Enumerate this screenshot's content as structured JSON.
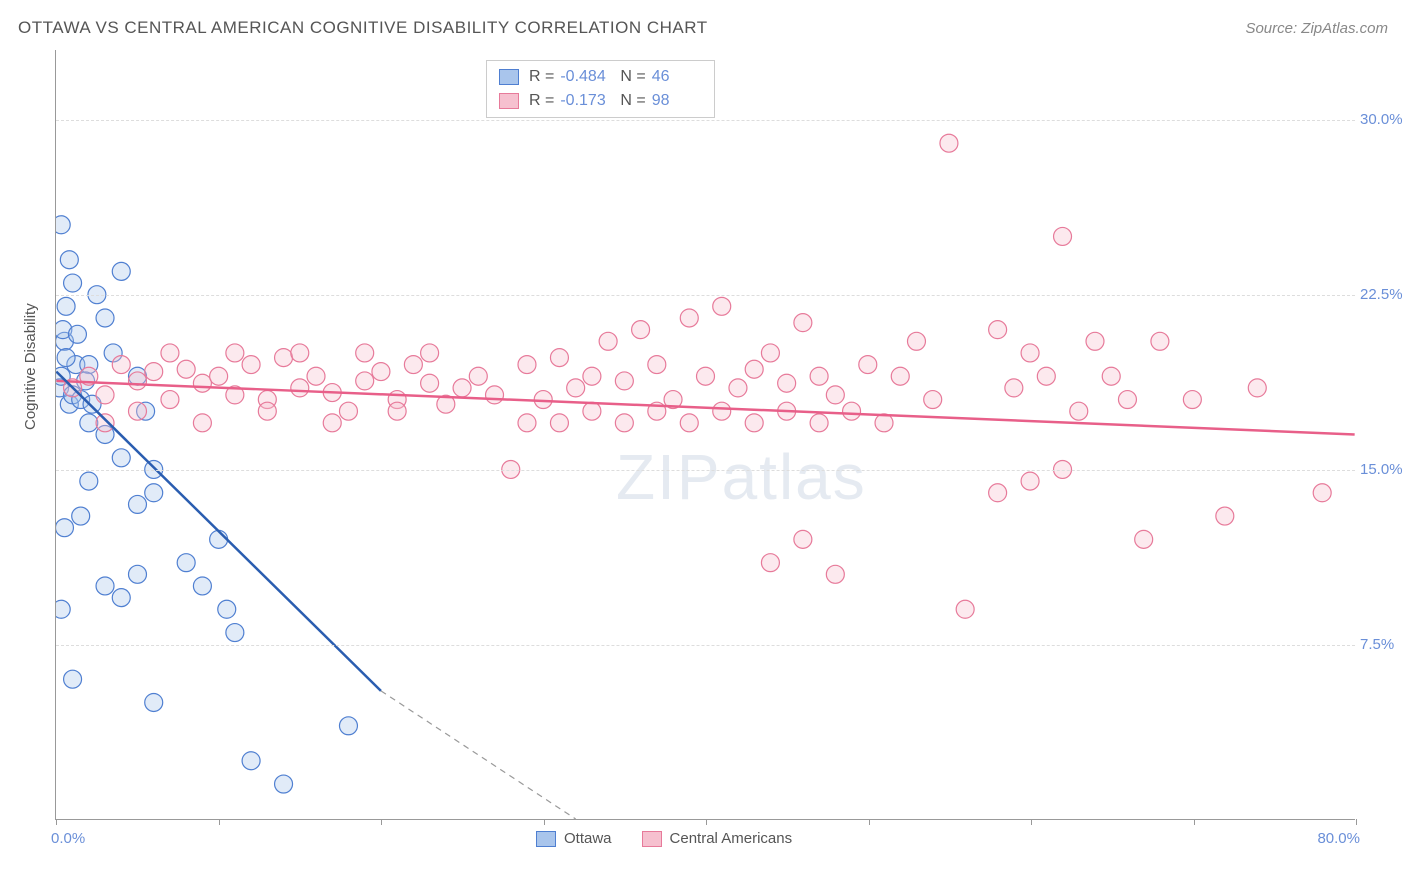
{
  "title": "OTTAWA VS CENTRAL AMERICAN COGNITIVE DISABILITY CORRELATION CHART",
  "source_label": "Source: ZipAtlas.com",
  "watermark": "ZIPatlas",
  "y_axis_label": "Cognitive Disability",
  "colors": {
    "blue_fill": "#a9c5ec",
    "blue_stroke": "#4f7fd1",
    "blue_line": "#2a5db0",
    "pink_fill": "#f6c0cf",
    "pink_stroke": "#e77a9a",
    "pink_line": "#e85f89",
    "tick_text": "#6a8fd8",
    "grid": "#dddddd",
    "axis": "#999999"
  },
  "chart": {
    "type": "scatter",
    "xlim": [
      0,
      80
    ],
    "ylim": [
      0,
      33
    ],
    "x_ticks": [
      0,
      10,
      20,
      30,
      40,
      50,
      60,
      70,
      80
    ],
    "y_gridlines": [
      7.5,
      15.0,
      22.5,
      30.0
    ],
    "y_tick_labels": [
      "7.5%",
      "15.0%",
      "22.5%",
      "30.0%"
    ],
    "x_min_label": "0.0%",
    "x_max_label": "80.0%",
    "marker_radius": 9
  },
  "stats_legend": {
    "series1": {
      "r_label": "R =",
      "r": "-0.484",
      "n_label": "N =",
      "n": "46"
    },
    "series2": {
      "r_label": "R =",
      "r": "-0.173",
      "n_label": "N =",
      "n": "98"
    }
  },
  "bottom_legend": {
    "series1_label": "Ottawa",
    "series2_label": "Central Americans"
  },
  "trend_lines": {
    "blue": {
      "x1": 0,
      "y1": 19.2,
      "x2_solid": 20,
      "y2_solid": 5.5,
      "x2_dash": 32,
      "y2_dash": 0
    },
    "pink": {
      "x1": 0,
      "y1": 18.8,
      "x2": 80,
      "y2": 16.5
    }
  },
  "series": {
    "ottawa": [
      [
        0.2,
        18.5
      ],
      [
        0.3,
        19.0
      ],
      [
        0.5,
        20.5
      ],
      [
        0.8,
        17.8
      ],
      [
        1.0,
        18.2
      ],
      [
        1.2,
        19.5
      ],
      [
        0.4,
        21.0
      ],
      [
        0.6,
        22.0
      ],
      [
        1.5,
        18.0
      ],
      [
        2.0,
        17.0
      ],
      [
        0.3,
        25.5
      ],
      [
        1.0,
        23.0
      ],
      [
        2.5,
        22.5
      ],
      [
        3.0,
        21.5
      ],
      [
        4.0,
        23.5
      ],
      [
        5.0,
        19.0
      ],
      [
        5.5,
        17.5
      ],
      [
        6.0,
        15.0
      ],
      [
        3.0,
        16.5
      ],
      [
        4.0,
        15.5
      ],
      [
        5.0,
        13.5
      ],
      [
        6.0,
        14.0
      ],
      [
        2.0,
        14.5
      ],
      [
        1.5,
        13.0
      ],
      [
        0.5,
        12.5
      ],
      [
        3.0,
        10.0
      ],
      [
        5.0,
        10.5
      ],
      [
        4.0,
        9.5
      ],
      [
        8.0,
        11.0
      ],
      [
        9.0,
        10.0
      ],
      [
        10.0,
        12.0
      ],
      [
        11.0,
        8.0
      ],
      [
        0.3,
        9.0
      ],
      [
        1.0,
        6.0
      ],
      [
        6.0,
        5.0
      ],
      [
        12.0,
        2.5
      ],
      [
        14.0,
        1.5
      ],
      [
        18.0,
        4.0
      ],
      [
        10.5,
        9.0
      ],
      [
        2.0,
        19.5
      ],
      [
        3.5,
        20.0
      ],
      [
        0.8,
        24.0
      ],
      [
        1.8,
        18.8
      ],
      [
        2.2,
        17.8
      ],
      [
        0.6,
        19.8
      ],
      [
        1.3,
        20.8
      ]
    ],
    "central": [
      [
        1,
        18.5
      ],
      [
        2,
        19.0
      ],
      [
        3,
        18.2
      ],
      [
        4,
        19.5
      ],
      [
        5,
        18.8
      ],
      [
        6,
        19.2
      ],
      [
        7,
        18.0
      ],
      [
        8,
        19.3
      ],
      [
        9,
        18.7
      ],
      [
        10,
        19.0
      ],
      [
        11,
        18.2
      ],
      [
        12,
        19.5
      ],
      [
        13,
        18.0
      ],
      [
        14,
        19.8
      ],
      [
        15,
        18.5
      ],
      [
        16,
        19.0
      ],
      [
        17,
        18.3
      ],
      [
        18,
        17.5
      ],
      [
        19,
        18.8
      ],
      [
        20,
        19.2
      ],
      [
        21,
        18.0
      ],
      [
        22,
        19.5
      ],
      [
        23,
        18.7
      ],
      [
        24,
        17.8
      ],
      [
        25,
        18.5
      ],
      [
        26,
        19.0
      ],
      [
        27,
        18.2
      ],
      [
        28,
        15.0
      ],
      [
        29,
        19.5
      ],
      [
        30,
        18.0
      ],
      [
        31,
        19.8
      ],
      [
        32,
        18.5
      ],
      [
        33,
        19.0
      ],
      [
        34,
        20.5
      ],
      [
        35,
        18.8
      ],
      [
        36,
        21.0
      ],
      [
        37,
        19.5
      ],
      [
        38,
        18.0
      ],
      [
        39,
        21.5
      ],
      [
        40,
        19.0
      ],
      [
        41,
        22.0
      ],
      [
        42,
        18.5
      ],
      [
        43,
        19.3
      ],
      [
        44,
        20.0
      ],
      [
        45,
        18.7
      ],
      [
        46,
        21.3
      ],
      [
        47,
        19.0
      ],
      [
        48,
        18.2
      ],
      [
        50,
        19.5
      ],
      [
        44,
        11.0
      ],
      [
        46,
        12.0
      ],
      [
        48,
        10.5
      ],
      [
        55,
        29.0
      ],
      [
        58,
        21.0
      ],
      [
        59,
        18.5
      ],
      [
        60,
        20.0
      ],
      [
        61,
        19.0
      ],
      [
        62,
        25.0
      ],
      [
        63,
        17.5
      ],
      [
        56,
        9.0
      ],
      [
        58,
        14.0
      ],
      [
        52,
        19.0
      ],
      [
        54,
        18.0
      ],
      [
        53,
        20.5
      ],
      [
        64,
        20.5
      ],
      [
        65,
        19.0
      ],
      [
        66,
        18.0
      ],
      [
        67,
        12.0
      ],
      [
        68,
        20.5
      ],
      [
        60,
        14.5
      ],
      [
        62,
        15.0
      ],
      [
        70,
        18.0
      ],
      [
        72,
        13.0
      ],
      [
        74,
        18.5
      ],
      [
        78,
        14.0
      ],
      [
        3,
        17.0
      ],
      [
        5,
        17.5
      ],
      [
        7,
        20.0
      ],
      [
        9,
        17.0
      ],
      [
        11,
        20.0
      ],
      [
        13,
        17.5
      ],
      [
        15,
        20.0
      ],
      [
        17,
        17.0
      ],
      [
        19,
        20.0
      ],
      [
        21,
        17.5
      ],
      [
        23,
        20.0
      ],
      [
        29,
        17.0
      ],
      [
        31,
        17.0
      ],
      [
        33,
        17.5
      ],
      [
        35,
        17.0
      ],
      [
        37,
        17.5
      ],
      [
        39,
        17.0
      ],
      [
        41,
        17.5
      ],
      [
        43,
        17.0
      ],
      [
        45,
        17.5
      ],
      [
        47,
        17.0
      ],
      [
        49,
        17.5
      ],
      [
        51,
        17.0
      ]
    ]
  }
}
